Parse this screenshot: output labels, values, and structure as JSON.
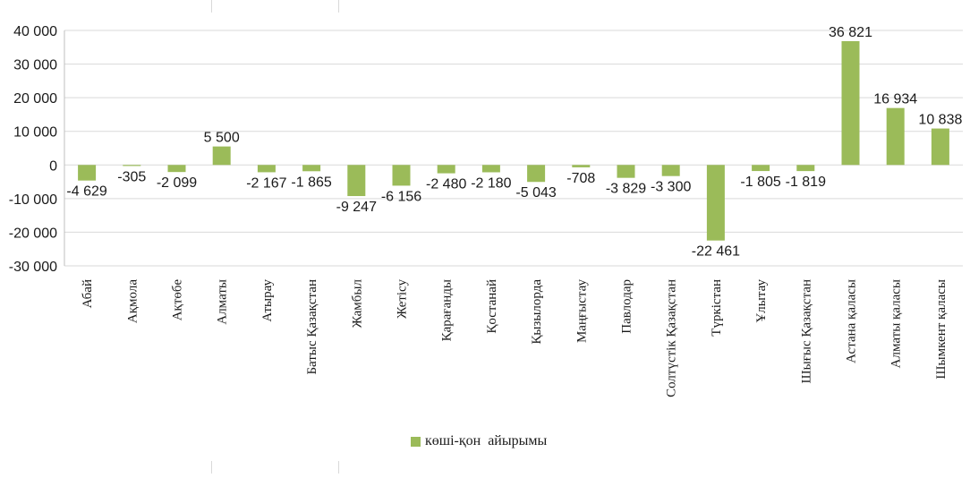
{
  "chart_data": {
    "type": "bar",
    "categories": [
      "Абай",
      "Ақмола",
      "Ақтөбе",
      "Алматы",
      "Атырау",
      "Батыс Қазақстан",
      "Жамбыл",
      "Жетісу",
      "Қарағанды",
      "Қостанай",
      "Қызылорда",
      "Маңғыстау",
      "Павлодар",
      "Солтүстік Қазақстан",
      "Түркістан",
      "Ұлытау",
      "Шығыс Қазақстан",
      "Астана қаласы",
      "Алматы қаласы",
      "Шымкент қаласы"
    ],
    "series": [
      {
        "name": "көші-қон айырымы",
        "values": [
          -4629,
          -305,
          -2099,
          5500,
          -2167,
          -1865,
          -9247,
          -6156,
          -2480,
          -2180,
          -5043,
          -708,
          -3829,
          -3300,
          -22461,
          -1805,
          -1819,
          36821,
          16934,
          10838
        ],
        "labels": [
          "-4 629",
          "-305",
          "-2 099",
          "5 500",
          "-2 167",
          "-1 865",
          "-9 247",
          "-6 156",
          "-2 480",
          "-2 180",
          "-5 043",
          "-708",
          "-3 829",
          "-3 300",
          "-22 461",
          "-1 805",
          "-1 819",
          "36 821",
          "16 934",
          "10 838"
        ]
      }
    ],
    "yticks": [
      40000,
      30000,
      20000,
      10000,
      0,
      -10000,
      -20000,
      -30000
    ],
    "ytick_labels": [
      "40 000",
      "30 000",
      "20 000",
      "10 000",
      "0",
      "-10 000",
      "-20 000",
      "-30 000"
    ],
    "ylim": [
      -30000,
      40000
    ],
    "grid": true,
    "legend_position": "bottom",
    "colors": {
      "bar": "#9BBB59",
      "grid": "#d9d9d9",
      "axis": "#bfbfbf"
    }
  },
  "legend": {
    "label": "көші-қон  айырымы"
  }
}
